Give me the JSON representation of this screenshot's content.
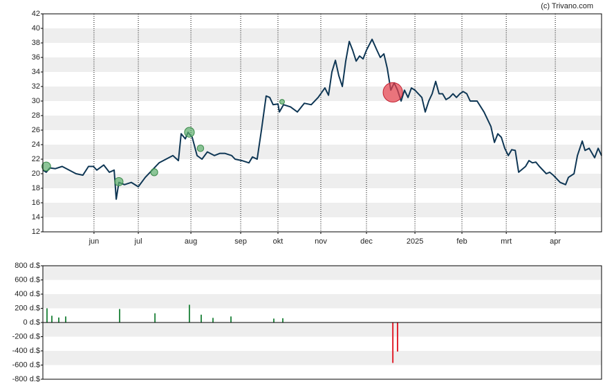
{
  "chart_data": [
    {
      "type": "line",
      "credit": "(c) Trivano.com",
      "x": [
        0,
        2.3,
        4.7,
        8.5,
        13.1,
        17.8,
        22.5,
        27.2,
        31.0,
        34.3,
        36.6,
        41.3,
        45.1,
        48.4,
        49.8,
        51.6,
        55.4,
        60.1,
        64.8,
        69.5,
        74.2,
        78.9,
        83.6,
        88.3,
        92.0,
        93.9,
        96.7,
        98.6,
        101.4,
        104.7,
        108.0,
        111.7,
        116.4,
        120.2,
        123.5,
        128.2,
        130.5,
        135.2,
        139.9,
        142.3,
        145.5,
        148.4,
        151.6,
        154.0,
        156.3,
        159.6,
        160.6,
        163.4,
        168.1,
        172.8,
        177.5,
        182.2,
        186.9,
        191.5,
        193.9,
        196.2,
        198.6,
        200.9,
        203.3,
        205.6,
        208.0,
        210.3,
        212.7,
        215.0,
        217.4,
        219.7,
        223.5,
        226.8,
        229.1,
        231.5,
        233.8,
        236.2,
        238.5,
        240.8,
        243.2,
        245.5,
        247.9,
        250.2,
        252.6,
        257.3,
        259.6,
        262.0,
        264.3,
        266.7,
        269.0,
        271.4,
        273.7,
        276.1,
        278.4,
        280.8,
        283.1,
        285.4,
        287.8,
        290.1,
        294.8,
        299.5,
        304.2,
        306.6,
        308.9,
        311.3,
        313.6,
        316.0,
        318.3,
        320.7,
        323.0,
        327.7,
        330.0,
        332.4,
        334.7,
        337.1,
        341.8,
        344.1,
        346.5,
        351.2,
        354.9,
        356.8,
        360.6,
        362.9,
        366.2,
        368.1,
        370.9,
        374.6,
        377.0,
        379.3
      ],
      "series": [
        {
          "color": "#0e3654",
          "values": [
            20.5,
            20.2,
            20.8,
            20.7,
            21.0,
            20.5,
            20.0,
            19.8,
            21.0,
            21.0,
            20.5,
            21.2,
            20.2,
            20.5,
            16.5,
            18.8,
            18.5,
            18.8,
            18.2,
            19.5,
            20.5,
            21.5,
            22.0,
            22.5,
            21.8,
            25.5,
            24.8,
            25.7,
            25.0,
            22.5,
            22.0,
            23.0,
            22.5,
            22.8,
            22.8,
            22.5,
            22.0,
            21.8,
            21.5,
            22.3,
            22.0,
            26.0,
            30.7,
            30.5,
            29.5,
            29.6,
            28.5,
            29.5,
            29.2,
            28.5,
            29.7,
            29.5,
            30.5,
            31.8,
            30.8,
            34.0,
            35.6,
            33.5,
            32.0,
            35.5,
            38.2,
            37.0,
            35.5,
            36.2,
            35.8,
            37.0,
            38.5,
            37.0,
            36.0,
            36.5,
            34.5,
            31.5,
            32.5,
            31.5,
            30.0,
            31.5,
            30.5,
            31.8,
            31.5,
            30.5,
            28.5,
            30.0,
            31.0,
            32.7,
            31.0,
            31.0,
            30.2,
            30.5,
            31.0,
            30.5,
            31.0,
            31.3,
            31.0,
            30.0,
            30.0,
            28.5,
            26.5,
            24.3,
            25.5,
            25.0,
            23.5,
            22.5,
            23.3,
            23.2,
            20.2,
            21.0,
            21.8,
            21.5,
            21.6,
            21.0,
            20.0,
            20.2,
            19.8,
            18.8,
            18.5,
            19.5,
            20.0,
            22.5,
            24.5,
            23.2,
            23.5,
            22.2,
            23.5,
            22.5
          ]
        }
      ],
      "markers": {
        "x": [
          2.3,
          51.6,
          75.6,
          99.5,
          107.0,
          162.4,
          237.6
        ],
        "values": [
          21.0,
          18.9,
          20.2,
          25.7,
          23.5,
          29.9,
          31.2
        ],
        "amounts": [
          200,
          180,
          130,
          250,
          110,
          60,
          -980
        ],
        "buy_color": "#5cae6c",
        "sell_color": "#e8404c"
      },
      "xlim": [
        0,
        379.3
      ],
      "xticks": [
        {
          "value": 34.7,
          "label": "jun"
        },
        {
          "value": 64.8,
          "label": "jul"
        },
        {
          "value": 100.5,
          "label": "aug"
        },
        {
          "value": 134.3,
          "label": "sep"
        },
        {
          "value": 159.6,
          "label": "okt"
        },
        {
          "value": 188.7,
          "label": "nov"
        },
        {
          "value": 219.7,
          "label": "dec"
        },
        {
          "value": 252.6,
          "label": "2025"
        },
        {
          "value": 284.5,
          "label": "feb"
        },
        {
          "value": 314.6,
          "label": "mrt"
        },
        {
          "value": 347.9,
          "label": "apr"
        }
      ],
      "ylim": [
        12,
        42
      ],
      "yticks": [
        12,
        14,
        16,
        18,
        20,
        22,
        24,
        26,
        28,
        30,
        32,
        34,
        36,
        38,
        40,
        42
      ],
      "grid": true
    },
    {
      "type": "bar",
      "x": [
        2.8,
        6.1,
        10.8,
        15.5,
        52.1,
        76.1,
        99.5,
        107.5,
        115.5,
        127.7,
        156.8,
        162.9,
        237.6,
        240.8
      ],
      "values": [
        200,
        95,
        70,
        85,
        190,
        130,
        250,
        110,
        65,
        85,
        55,
        60,
        -570,
        -410
      ],
      "pos_color": "#2e8b48",
      "neg_color": "#e0202c",
      "xlim": [
        0,
        379.3
      ],
      "ylim": [
        -800,
        800
      ],
      "yticks": [
        {
          "value": -800,
          "label": "-800 d.$"
        },
        {
          "value": -600,
          "label": "-600 d.$"
        },
        {
          "value": -400,
          "label": "-400 d.$"
        },
        {
          "value": -200,
          "label": "-200 d.$"
        },
        {
          "value": 0,
          "label": "0 d.$"
        },
        {
          "value": 200,
          "label": "200 d.$"
        },
        {
          "value": 400,
          "label": "400 d.$"
        },
        {
          "value": 600,
          "label": "600 d.$"
        },
        {
          "value": 800,
          "label": "800 d.$"
        }
      ],
      "grid": true
    }
  ]
}
